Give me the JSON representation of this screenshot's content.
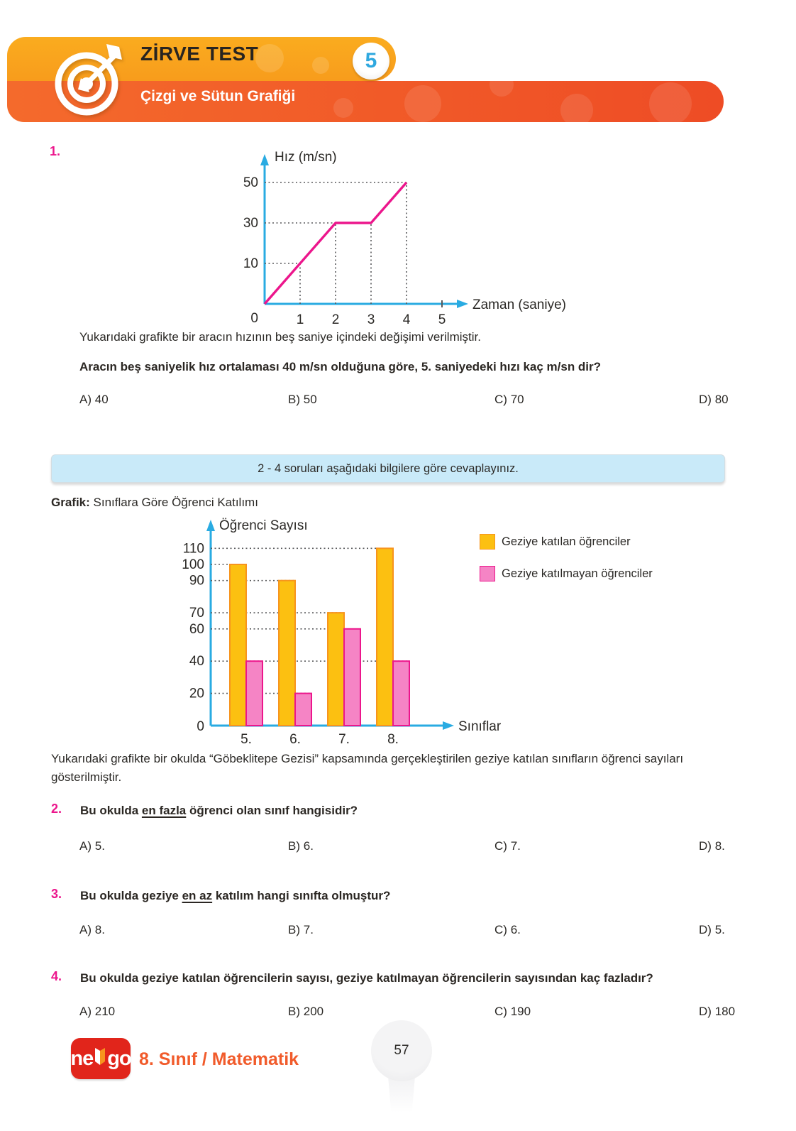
{
  "header": {
    "title": "ZİRVE TEST",
    "test_number": "5",
    "subtitle": "Çizgi ve Sütun Grafiği"
  },
  "q1": {
    "number": "1.",
    "description": "Yukarıdaki grafikte bir aracın hızının beş saniye içindeki değişimi verilmiştir.",
    "question": "Aracın beş saniyelik hız ortalaması 40 m/sn olduğuna göre, 5. saniyedeki hızı kaç m/sn dir?",
    "options": [
      {
        "label": "A)",
        "value": "40"
      },
      {
        "label": "B)",
        "value": "50"
      },
      {
        "label": "C)",
        "value": "70"
      },
      {
        "label": "D)",
        "value": "80"
      }
    ]
  },
  "info_box": {
    "text": "2 - 4 soruları aşağıdaki bilgilere göre cevaplayınız."
  },
  "graph_section": {
    "label": "Grafik:",
    "title": " Sınıflara Göre Öğrenci Katılımı",
    "description": "Yukarıdaki grafikte bir okulda “Göbeklitepe Gezisi” kapsamında gerçekleştirilen geziye katılan sınıfların öğrenci sayıları gösterilmiştir."
  },
  "q2": {
    "number": "2.",
    "pre": "Bu okulda ",
    "underlined": "en fazla",
    "post": " öğrenci olan sınıf hangisidir?",
    "options": [
      {
        "label": "A)",
        "value": "5."
      },
      {
        "label": "B)",
        "value": "6."
      },
      {
        "label": "C)",
        "value": "7."
      },
      {
        "label": "D)",
        "value": "8."
      }
    ]
  },
  "q3": {
    "number": "3.",
    "pre": "Bu okulda geziye ",
    "underlined": "en az",
    "post": " katılım hangi sınıfta olmuştur?",
    "options": [
      {
        "label": "A)",
        "value": "8."
      },
      {
        "label": "B)",
        "value": "7."
      },
      {
        "label": "C)",
        "value": "6."
      },
      {
        "label": "D)",
        "value": "5."
      }
    ]
  },
  "q4": {
    "number": "4.",
    "pre": "Bu okulda geziye katılan öğrencilerin sayısı, geziye katılmayan öğrencilerin sayısından kaç fazladır?",
    "underlined": "",
    "post": "",
    "options": [
      {
        "label": "A)",
        "value": "210"
      },
      {
        "label": "B)",
        "value": "200"
      },
      {
        "label": "C)",
        "value": "190"
      },
      {
        "label": "D)",
        "value": "180"
      }
    ]
  },
  "footer": {
    "logo_text_1": "ne",
    "logo_text_2": "go",
    "brand": "8. Sınıf / Matematik",
    "page_number": "57"
  },
  "chart_data": [
    {
      "type": "line",
      "ylabel": "Hız (m/sn)",
      "xlabel": "Zaman (saniye)",
      "x_ticks": [
        1,
        2,
        3,
        4,
        5
      ],
      "y_ticks": [
        10,
        30,
        50
      ],
      "origin_label": "0",
      "points": [
        [
          0,
          0
        ],
        [
          2,
          30
        ],
        [
          3,
          30
        ],
        [
          4,
          50
        ]
      ],
      "guides_h": [
        {
          "v": 10,
          "to_x": 1
        },
        {
          "v": 30,
          "to_x": 2
        },
        {
          "v": 50,
          "to_x": 4
        }
      ],
      "guides_v": [
        {
          "x": 1,
          "to_v": 10
        },
        {
          "x": 2,
          "to_v": 30
        },
        {
          "x": 3,
          "to_v": 30
        },
        {
          "x": 4,
          "to_v": 50
        }
      ],
      "colors": {
        "axis": "#29ABE2",
        "line": "#EC168C",
        "grid": "#58595B",
        "text": "#2B2926"
      }
    },
    {
      "type": "bar",
      "ylabel": "Öğrenci Sayısı",
      "xlabel": "Sınıflar",
      "categories": [
        "5.",
        "6.",
        "7.",
        "8."
      ],
      "series": [
        {
          "name": "Geziye katılan öğrenciler",
          "color": "#FCC011",
          "stroke": "#F7941E",
          "values": [
            100,
            90,
            70,
            110
          ]
        },
        {
          "name": "Geziye katılmayan öğrenciler",
          "color": "#F584C5",
          "stroke": "#EC168C",
          "values": [
            40,
            20,
            60,
            40
          ]
        }
      ],
      "y_ticks": [
        110,
        100,
        90,
        70,
        60,
        40,
        20
      ],
      "ylim": [
        0,
        120
      ],
      "origin_label": "0",
      "colors": {
        "axis": "#29ABE2",
        "grid": "#58595B",
        "text": "#2B2926"
      }
    }
  ]
}
